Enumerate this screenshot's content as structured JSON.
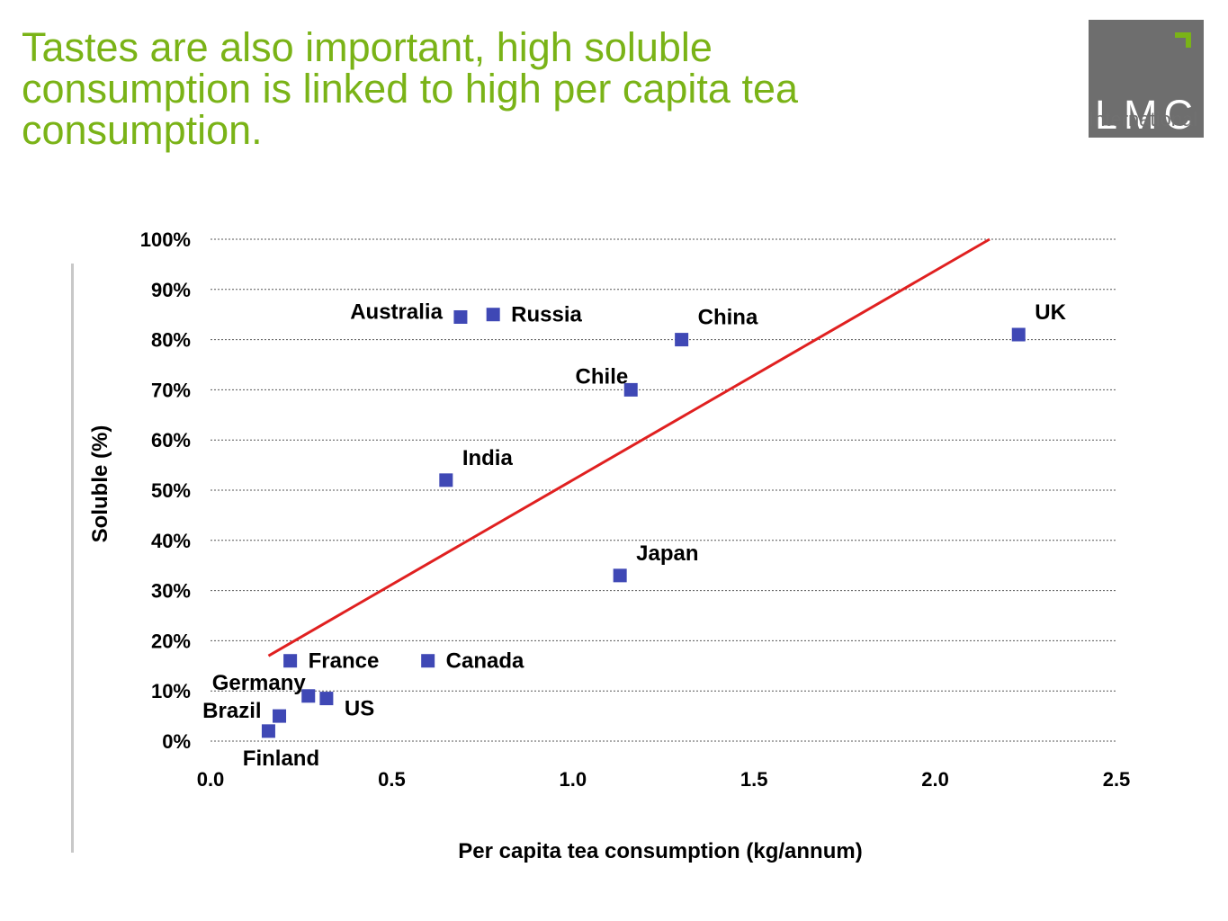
{
  "slide": {
    "title": "Tastes are also important, high soluble consumption is linked to high per capita tea consumption.",
    "title_color": "#7ab317"
  },
  "logo": {
    "text": "LMC",
    "subtitle": "International",
    "box_color": "#6e6e6e",
    "accent_color": "#7ab317"
  },
  "chart_data": {
    "type": "scatter",
    "title": "",
    "xlabel": "Per capita tea consumption (kg/annum)",
    "ylabel": "Soluble (%)",
    "xlim": [
      0.0,
      2.5
    ],
    "ylim": [
      0,
      100
    ],
    "x_ticks": [
      "0.0",
      "0.5",
      "1.0",
      "1.5",
      "2.0",
      "2.5"
    ],
    "y_ticks": [
      "0%",
      "10%",
      "20%",
      "30%",
      "40%",
      "50%",
      "60%",
      "70%",
      "80%",
      "90%",
      "100%"
    ],
    "grid": "horizontal dotted",
    "marker_color": "#3f48b5",
    "trendline_color": "#e02020",
    "points": [
      {
        "label": "Australia",
        "x": 0.69,
        "y": 84.5,
        "label_pos": "left"
      },
      {
        "label": "Russia",
        "x": 0.78,
        "y": 85,
        "label_pos": "right"
      },
      {
        "label": "China",
        "x": 1.3,
        "y": 80,
        "label_pos": "above-right"
      },
      {
        "label": "UK",
        "x": 2.23,
        "y": 81,
        "label_pos": "above-right"
      },
      {
        "label": "Chile",
        "x": 1.16,
        "y": 70,
        "label_pos": "above-left"
      },
      {
        "label": "India",
        "x": 0.65,
        "y": 52,
        "label_pos": "above-right"
      },
      {
        "label": "Japan",
        "x": 1.13,
        "y": 33,
        "label_pos": "above-right"
      },
      {
        "label": "France",
        "x": 0.22,
        "y": 16,
        "label_pos": "right"
      },
      {
        "label": "Canada",
        "x": 0.6,
        "y": 16,
        "label_pos": "right"
      },
      {
        "label": "Germany",
        "x": 0.27,
        "y": 9,
        "label_pos": "above-left"
      },
      {
        "label": "US",
        "x": 0.32,
        "y": 8.5,
        "label_pos": "below-right"
      },
      {
        "label": "Brazil",
        "x": 0.19,
        "y": 5,
        "label_pos": "left"
      },
      {
        "label": "Finland",
        "x": 0.16,
        "y": 2,
        "label_pos": "below"
      }
    ],
    "trendline": {
      "x": [
        0.16,
        2.15
      ],
      "y": [
        17,
        100
      ]
    }
  }
}
